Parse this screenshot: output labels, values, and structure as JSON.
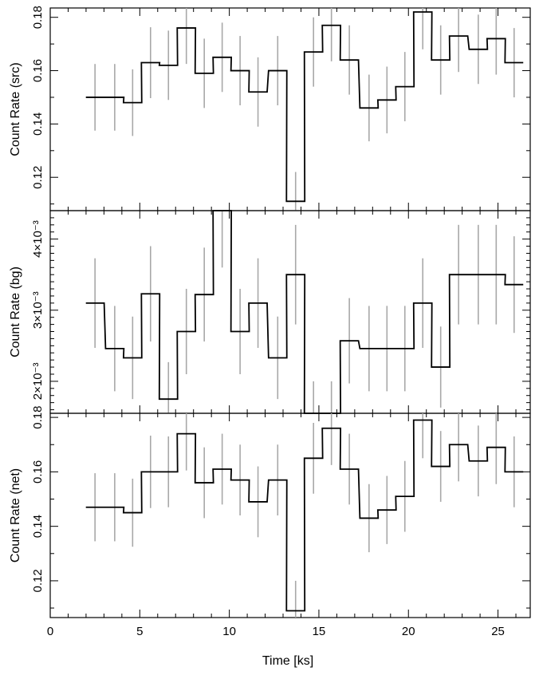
{
  "chart_data": [
    {
      "type": "line",
      "panel": "top",
      "ylabel": "Count Rate (src)",
      "xlim": [
        0,
        26.8
      ],
      "ylim": [
        0.1075,
        0.1835
      ],
      "yticks_major": [
        0.12,
        0.14,
        0.16,
        0.18
      ],
      "ytick_labels": [
        "0.12",
        "0.14",
        "0.16",
        "0.18"
      ],
      "yticks_minor": [
        0.11,
        0.13,
        0.15,
        0.17
      ],
      "x": [
        2.5,
        3.6,
        4.6,
        5.6,
        6.6,
        7.6,
        8.6,
        9.6,
        10.6,
        11.6,
        12.7,
        13.7,
        14.7,
        15.7,
        16.7,
        17.8,
        18.8,
        19.8,
        20.8,
        21.8,
        22.8,
        23.9,
        24.9,
        25.9
      ],
      "values": [
        0.15,
        0.15,
        0.148,
        0.163,
        0.162,
        0.176,
        0.159,
        0.165,
        0.16,
        0.152,
        0.16,
        0.111,
        0.167,
        0.177,
        0.164,
        0.146,
        0.149,
        0.154,
        0.182,
        0.164,
        0.173,
        0.168,
        0.172,
        0.163
      ],
      "errors": [
        0.0125,
        0.0125,
        0.0125,
        0.0133,
        0.013,
        0.0135,
        0.013,
        0.013,
        0.013,
        0.013,
        0.013,
        0.011,
        0.013,
        0.0135,
        0.013,
        0.0125,
        0.0125,
        0.013,
        0.014,
        0.013,
        0.0135,
        0.013,
        0.0135,
        0.013
      ]
    },
    {
      "type": "line",
      "panel": "middle",
      "ylabel": "Count Rate (bg)",
      "xlim": [
        0,
        26.8
      ],
      "ylim": [
        0.00155,
        0.0044
      ],
      "yticks_major": [
        0.002,
        0.003,
        0.004
      ],
      "ytick_labels": [
        "2×10⁻³",
        "3×10⁻³",
        "4×10⁻³"
      ],
      "yticks_minor": [
        0.0016,
        0.0017,
        0.0018,
        0.0019,
        0.0021,
        0.0022,
        0.0023,
        0.0024,
        0.0025,
        0.0026,
        0.0027,
        0.0028,
        0.0029,
        0.0031,
        0.0032,
        0.0033,
        0.0034,
        0.0035,
        0.0036,
        0.0037,
        0.0038,
        0.0039,
        0.0041,
        0.0042,
        0.0043,
        0.0044
      ],
      "x": [
        2.5,
        3.6,
        4.6,
        5.6,
        6.6,
        7.6,
        8.6,
        9.6,
        10.6,
        11.6,
        12.7,
        13.7,
        14.7,
        15.7,
        16.7,
        17.8,
        18.8,
        19.8,
        20.8,
        21.8,
        22.8,
        23.9,
        24.9,
        25.9
      ],
      "values": [
        0.0031,
        0.00246,
        0.00233,
        0.00323,
        0.00175,
        0.0027,
        0.00322,
        0.0044,
        0.0027,
        0.0031,
        0.00233,
        0.0035,
        0.00155,
        0.00155,
        0.00257,
        0.00246,
        0.00246,
        0.00246,
        0.0031,
        0.0022,
        0.0035,
        0.0035,
        0.0035,
        0.00336
      ],
      "errors": [
        0.00063,
        0.0006,
        0.00058,
        0.00067,
        0.00052,
        0.0006,
        0.00066,
        0.0008,
        0.0006,
        0.00063,
        0.00058,
        0.0007,
        0.00045,
        0.00045,
        0.0006,
        0.0006,
        0.0006,
        0.0006,
        0.00063,
        0.00057,
        0.0007,
        0.0007,
        0.0007,
        0.00068
      ]
    },
    {
      "type": "line",
      "panel": "bottom",
      "ylabel": "Count Rate (net)",
      "xlabel": "Time [ks]",
      "xlim": [
        0,
        26.8
      ],
      "ylim": [
        0.1065,
        0.1815
      ],
      "xticks_major": [
        0,
        5,
        10,
        15,
        20,
        25
      ],
      "xtick_labels": [
        "0",
        "5",
        "10",
        "15",
        "20",
        "25"
      ],
      "xticks_minor": [
        1,
        2,
        3,
        4,
        6,
        7,
        8,
        9,
        11,
        12,
        13,
        14,
        16,
        17,
        18,
        19,
        21,
        22,
        23,
        24,
        26
      ],
      "yticks_major": [
        0.12,
        0.14,
        0.16,
        0.18
      ],
      "ytick_labels": [
        "0.12",
        "0.14",
        "0.16",
        "0.18"
      ],
      "yticks_minor": [
        0.11,
        0.13,
        0.15,
        0.17
      ],
      "x": [
        2.5,
        3.6,
        4.6,
        5.6,
        6.6,
        7.6,
        8.6,
        9.6,
        10.6,
        11.6,
        12.7,
        13.7,
        14.7,
        15.7,
        16.7,
        17.8,
        18.8,
        19.8,
        20.8,
        21.8,
        22.8,
        23.9,
        24.9,
        25.9
      ],
      "values": [
        0.147,
        0.147,
        0.145,
        0.16,
        0.16,
        0.174,
        0.156,
        0.161,
        0.157,
        0.149,
        0.157,
        0.109,
        0.165,
        0.176,
        0.161,
        0.143,
        0.146,
        0.151,
        0.179,
        0.162,
        0.17,
        0.164,
        0.169,
        0.16
      ],
      "errors": [
        0.0125,
        0.0125,
        0.0125,
        0.0133,
        0.013,
        0.0135,
        0.013,
        0.013,
        0.013,
        0.013,
        0.013,
        0.011,
        0.013,
        0.0135,
        0.013,
        0.0125,
        0.0125,
        0.013,
        0.014,
        0.013,
        0.0135,
        0.013,
        0.0135,
        0.013
      ]
    }
  ],
  "bin_width_ks": 1.02
}
